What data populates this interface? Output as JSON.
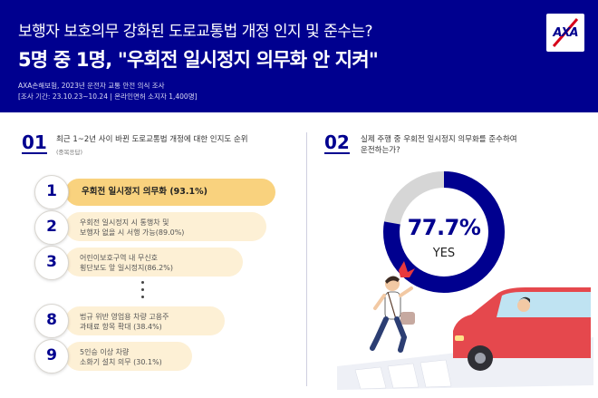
{
  "header": {
    "title_line1": "보행자 보호의무 강화된 도로교통법 개정 인지 및 준수는?",
    "title_line2": "5명 중 1명, \"우회전 일시정지 의무화 안 지켜\"",
    "source_line1": "AXA손해보험, 2023년 운전자 교통 안전 의식 조사",
    "source_line2": "[조사 기간: 23.10.23~10.24 | 온라인면허 소지자 1,400명]"
  },
  "logo": {
    "text": "AXA",
    "color": "#00008F"
  },
  "section1": {
    "number": "01",
    "title": "최근 1~2년 사이 바뀐 도로교통법 개정에 대한 인지도 순위",
    "subtitle": "(중복응답)",
    "items": [
      {
        "rank": "1",
        "line1": "우회전 일시정지 의무화 (93.1%)",
        "line2": ""
      },
      {
        "rank": "2",
        "line1": "우회전 일시정지 시 통행차 및",
        "line2": "보행자 없을 시 서행 가능(89.0%)"
      },
      {
        "rank": "3",
        "line1": "어린이보호구역 내 무신호",
        "line2": "횡단보도 앞 일시정지(86.2%)"
      },
      {
        "rank": "8",
        "line1": "법규 위반 영업용 차량 고용주",
        "line2": "과태료 항목 확대 (38.4%)"
      },
      {
        "rank": "9",
        "line1": "5인승 이상 차량",
        "line2": "소화기 설치 의무 (30.1%)"
      }
    ]
  },
  "section2": {
    "number": "02",
    "title_line1": "실제 주행 중 우회전 일시정지 의무화를 준수하여",
    "title_line2": "운전하는가?",
    "percent_label": "77.7%",
    "yes_label": "YES",
    "yes_fraction": 0.777,
    "colors": {
      "yes": "#00008F",
      "no": "#d6d6d6"
    }
  }
}
